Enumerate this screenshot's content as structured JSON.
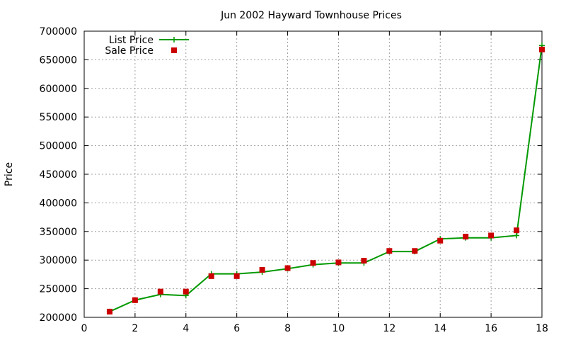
{
  "chart_data": {
    "type": "line",
    "title": "Jun 2002 Hayward Townhouse Prices",
    "xlabel": "",
    "ylabel": "Price",
    "xlim": [
      0,
      18
    ],
    "ylim": [
      200000,
      700000
    ],
    "xticks": [
      0,
      2,
      4,
      6,
      8,
      10,
      12,
      14,
      16,
      18
    ],
    "yticks": [
      200000,
      250000,
      300000,
      350000,
      400000,
      450000,
      500000,
      550000,
      600000,
      650000,
      700000
    ],
    "grid": true,
    "legend_position": "top-left",
    "x": [
      1,
      2,
      3,
      4,
      5,
      6,
      7,
      8,
      9,
      10,
      11,
      12,
      13,
      14,
      15,
      16,
      17,
      18
    ],
    "series": [
      {
        "name": "List Price",
        "style": "line-with-plus-markers",
        "color": "#009900",
        "values": [
          210000,
          230000,
          240000,
          238000,
          276000,
          276000,
          279000,
          285000,
          292000,
          295000,
          295000,
          315000,
          315000,
          337000,
          339000,
          339000,
          343000,
          675000
        ]
      },
      {
        "name": "Sale Price",
        "style": "square-markers",
        "color": "#cc0000",
        "values": [
          210000,
          230000,
          245000,
          245000,
          272000,
          272000,
          283000,
          286000,
          295000,
          296000,
          299000,
          316000,
          316000,
          334000,
          341000,
          343000,
          352000,
          668000
        ]
      }
    ]
  }
}
